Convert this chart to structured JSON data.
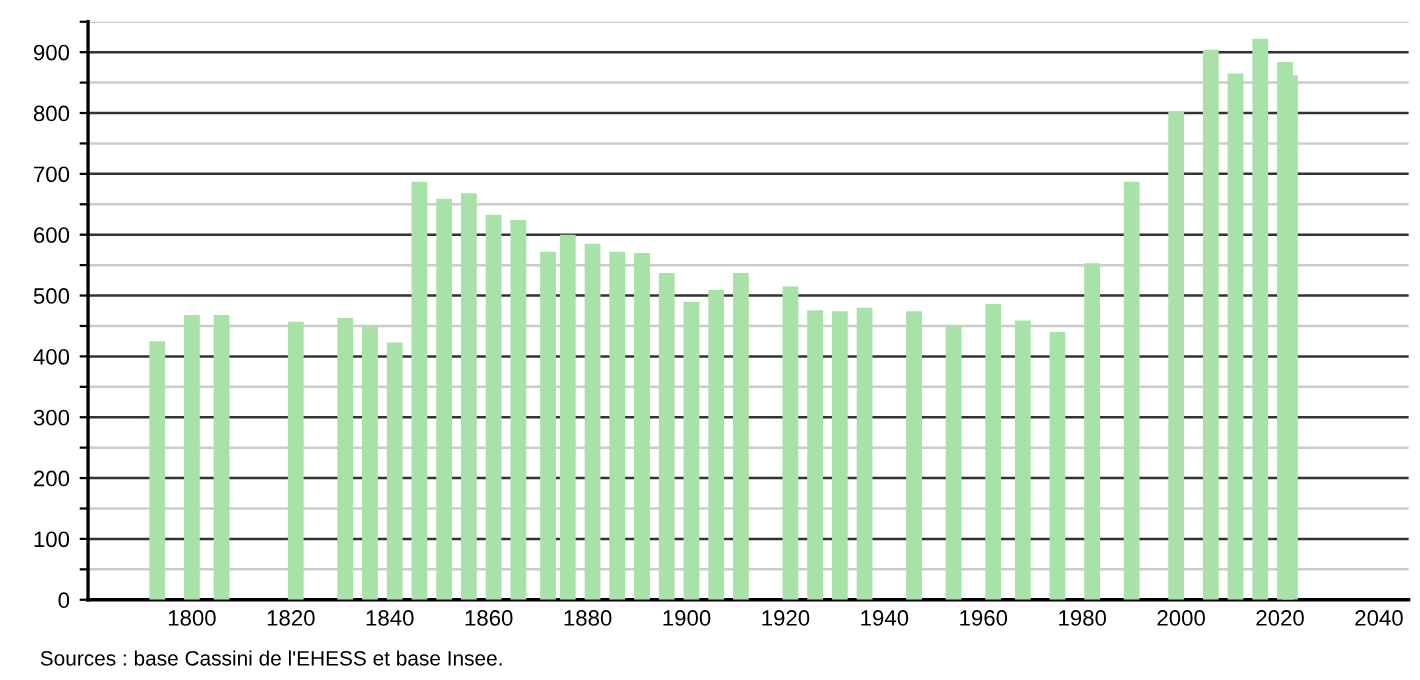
{
  "chart_data": {
    "type": "bar",
    "x": [
      1793,
      1800,
      1806,
      1821,
      1831,
      1836,
      1841,
      1846,
      1851,
      1856,
      1861,
      1866,
      1872,
      1876,
      1881,
      1886,
      1891,
      1896,
      1901,
      1906,
      1911,
      1921,
      1926,
      1931,
      1936,
      1946,
      1954,
      1962,
      1968,
      1975,
      1982,
      1990,
      1999,
      2006,
      2011,
      2016,
      2021,
      2022
    ],
    "values": [
      425,
      468,
      468,
      457,
      463,
      449,
      423,
      687,
      659,
      668,
      633,
      624,
      572,
      600,
      585,
      572,
      570,
      537,
      490,
      509,
      537,
      515,
      476,
      474,
      480,
      474,
      449,
      486,
      459,
      440,
      553,
      687,
      802,
      904,
      865,
      922,
      884,
      862
    ],
    "color": "#a8e2a8",
    "xlim": [
      1779,
      2046
    ],
    "xticks": [
      1800,
      1820,
      1840,
      1860,
      1880,
      1900,
      1920,
      1940,
      1960,
      1980,
      2000,
      2020,
      2040
    ],
    "ylim": [
      0,
      950
    ],
    "yticks": [
      0,
      {
        "value": 50,
        "label": null
      },
      100,
      {
        "value": 150,
        "label": null
      },
      200,
      {
        "value": 250,
        "label": null
      },
      300,
      {
        "value": 350,
        "label": null
      },
      400,
      {
        "value": 450,
        "label": null
      },
      500,
      {
        "value": 550,
        "label": null
      },
      600,
      {
        "value": 650,
        "label": null
      },
      700,
      {
        "value": 750,
        "label": null
      },
      800,
      {
        "value": 850,
        "label": null
      },
      900,
      {
        "value": 950,
        "label": null
      }
    ],
    "grid": "y",
    "annotations": [
      "Sources : base Cassini de l'EHESS et base Insee."
    ]
  }
}
